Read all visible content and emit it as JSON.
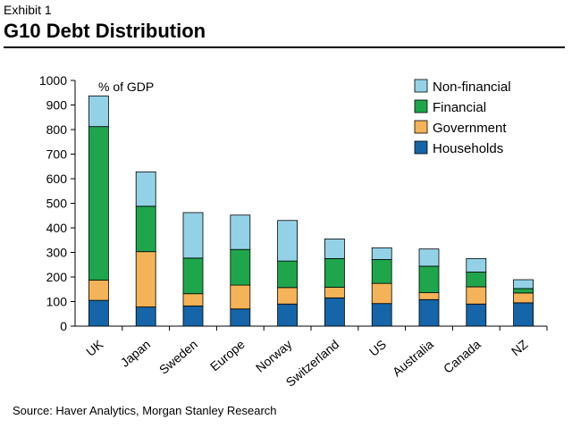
{
  "header": {
    "exhibit": "Exhibit 1",
    "title": "G10 Debt Distribution"
  },
  "footer": {
    "source": "Source: Haver Analytics, Morgan Stanley Research"
  },
  "chart_data": {
    "type": "bar",
    "stacked": true,
    "title": "G10 Debt Distribution",
    "ylabel": "% of GDP",
    "xlabel": "",
    "ylim": [
      0,
      1000
    ],
    "yticks": [
      0,
      100,
      200,
      300,
      400,
      500,
      600,
      700,
      800,
      900,
      1000
    ],
    "categories": [
      "UK",
      "Japan",
      "Sweden",
      "Europe",
      "Norway",
      "Switzerland",
      "US",
      "Australia",
      "Canada",
      "NZ"
    ],
    "series": [
      {
        "name": "Households",
        "color": "#1565a8",
        "values": [
          105,
          78,
          82,
          70,
          90,
          115,
          92,
          108,
          90,
          95
        ]
      },
      {
        "name": "Government",
        "color": "#f4b358",
        "values": [
          82,
          225,
          50,
          97,
          67,
          43,
          82,
          28,
          70,
          40
        ]
      },
      {
        "name": "Financial",
        "color": "#1fa64c",
        "values": [
          625,
          185,
          145,
          145,
          108,
          117,
          97,
          108,
          60,
          18
        ]
      },
      {
        "name": "Non-financial",
        "color": "#93d2e6",
        "values": [
          125,
          140,
          185,
          140,
          165,
          80,
          48,
          70,
          55,
          36
        ]
      }
    ],
    "legend_order": [
      "Non-financial",
      "Financial",
      "Government",
      "Households"
    ],
    "legend_position": "top-right",
    "grid": false
  }
}
